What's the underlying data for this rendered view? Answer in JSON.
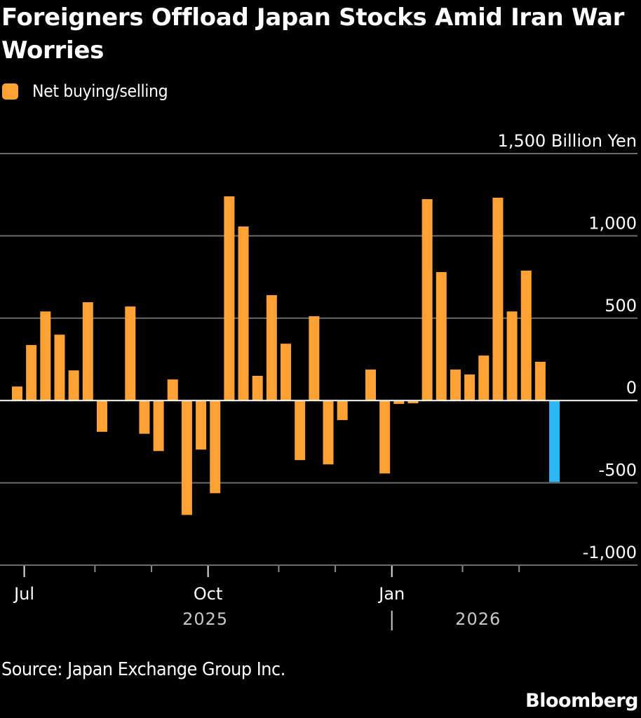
{
  "chart_data": {
    "type": "bar",
    "title": "Foreigners Offload Japan Stocks Amid Iran War Worries",
    "legend": [
      {
        "name": "Net buying/selling",
        "color": "#FFA133"
      }
    ],
    "legend_position": "top-left",
    "ylabel": "Billion Yen",
    "xlabel": "",
    "ylim": [
      -1000,
      1500
    ],
    "y_ticks": [
      {
        "value": 1500,
        "label": "1,500 Billion Yen"
      },
      {
        "value": 1000,
        "label": "1,000"
      },
      {
        "value": 500,
        "label": "500"
      },
      {
        "value": 0,
        "label": "0"
      },
      {
        "value": -500,
        "label": "-500"
      },
      {
        "value": -1000,
        "label": "-1,000"
      }
    ],
    "grid": true,
    "x_major_ticks": [
      {
        "index": 1,
        "label": "Jul"
      },
      {
        "index": 14,
        "label": "Oct"
      },
      {
        "index": 27,
        "label": "Jan"
      }
    ],
    "x_minor_ticks": [
      6,
      10,
      19,
      23,
      32,
      36
    ],
    "year_labels": [
      {
        "label": "2025",
        "center_index": 13.3
      },
      {
        "label": "2026",
        "center_index": 32.6
      }
    ],
    "year_divider_index": 27,
    "series": [
      {
        "name": "Net buying/selling",
        "color": "#FFA133",
        "highlight_color": "#2DB8F5",
        "highlight_index": 38,
        "values": [
          85,
          337,
          541,
          400,
          183,
          597,
          -190,
          0,
          571,
          -202,
          -307,
          128,
          -695,
          -298,
          -563,
          1240,
          1057,
          150,
          640,
          345,
          -362,
          512,
          -388,
          -119,
          0,
          188,
          -443,
          -21,
          -17,
          1223,
          780,
          188,
          158,
          273,
          1232,
          541,
          789,
          235,
          -495
        ]
      }
    ],
    "source": "Source: Japan Exchange Group Inc.",
    "brand": "Bloomberg"
  }
}
